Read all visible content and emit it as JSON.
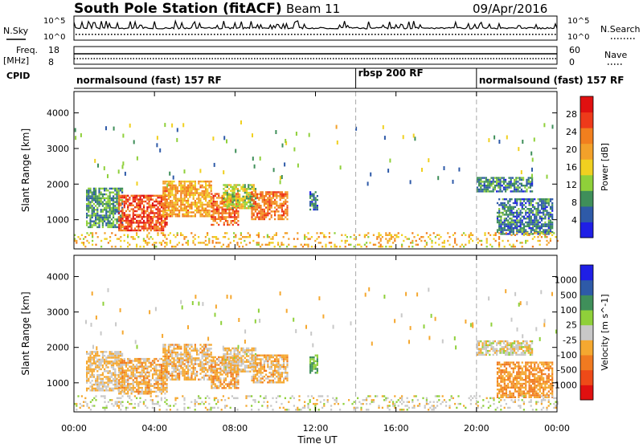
{
  "header": {
    "station": "South Pole Station (fitACF)",
    "beam": "Beam 11",
    "date": "09/Apr/2016"
  },
  "strips": {
    "nsky_label": "N.Sky",
    "nsearch_label": "N.Search",
    "log_ticks": [
      "10^5",
      "10^0"
    ],
    "freq_label": "Freq.",
    "freq_unit": "[MHz]",
    "freq_ticks": [
      "18",
      "8"
    ],
    "nave_label": "Nave",
    "nave_ticks": [
      "60",
      "0"
    ],
    "cpid_label": "CPID",
    "cpid_segments": [
      {
        "label": "normalsound (fast) 157 RF",
        "start_h": 0,
        "end_h": 14
      },
      {
        "label": "rbsp 200 RF",
        "start_h": 14,
        "end_h": 20
      },
      {
        "label": "normalsound (fast) 157 RF",
        "start_h": 20,
        "end_h": 24
      }
    ]
  },
  "xaxis": {
    "label": "Time UT",
    "ticks": [
      "00:00",
      "04:00",
      "08:00",
      "12:00",
      "16:00",
      "20:00",
      "00:00"
    ]
  },
  "colors": {
    "power": [
      "#1f1fe6",
      "#2e5aa8",
      "#3f8f5a",
      "#8fd03a",
      "#f0d020",
      "#f3a12a",
      "#f27f1e",
      "#ee3a1a",
      "#e01010"
    ],
    "velocity": [
      "#e01010",
      "#ee4a18",
      "#f07a20",
      "#f5a830",
      "#c8c8c8",
      "#8fd03a",
      "#3f8f5a",
      "#2e5aa8",
      "#1f1fe6"
    ]
  },
  "chart_data": [
    {
      "type": "heatmap",
      "panel": "power",
      "ylabel": "Slant Range [km]",
      "colorbar_label": "Power [dB]",
      "colorbar_ticks": [
        "28",
        "24",
        "20",
        "16",
        "12",
        "8",
        "4"
      ],
      "x": [
        0,
        24
      ],
      "x_ticks": [
        "00:00",
        "04:00",
        "08:00",
        "12:00",
        "16:00",
        "20:00",
        "00:00"
      ],
      "y_ticks": [
        "4000",
        "3000",
        "2000",
        "1000"
      ],
      "ylim": [
        180,
        4600
      ],
      "clim": [
        0,
        32
      ],
      "vertical_markers_h": [
        14,
        20
      ],
      "patches": [
        {
          "t0": 0.6,
          "t1": 2.4,
          "r0": 800,
          "r1": 1900,
          "value": 9
        },
        {
          "t0": 2.2,
          "t1": 4.6,
          "r0": 700,
          "r1": 1700,
          "value": 26
        },
        {
          "t0": 4.4,
          "t1": 6.8,
          "r0": 1100,
          "r1": 2100,
          "value": 20
        },
        {
          "t0": 6.8,
          "t1": 8.2,
          "r0": 850,
          "r1": 1750,
          "value": 24
        },
        {
          "t0": 7.4,
          "t1": 9.0,
          "r0": 1300,
          "r1": 2000,
          "value": 14
        },
        {
          "t0": 8.8,
          "t1": 10.6,
          "r0": 1000,
          "r1": 1800,
          "value": 23
        },
        {
          "t0": 11.7,
          "t1": 12.1,
          "r0": 1300,
          "r1": 1800,
          "value": 7
        },
        {
          "t0": 20.0,
          "t1": 22.8,
          "r0": 1800,
          "r1": 2200,
          "value": 8
        },
        {
          "t0": 21.0,
          "t1": 23.8,
          "r0": 600,
          "r1": 1600,
          "value": 7
        },
        {
          "t0": 0.0,
          "t1": 24.0,
          "r0": 250,
          "r1": 650,
          "value": 18
        }
      ]
    },
    {
      "type": "heatmap",
      "panel": "velocity",
      "ylabel": "Slant Range [km]",
      "colorbar_label": "Velocity [m s^-1]",
      "colorbar_ticks": [
        "1000",
        "500",
        "100",
        "25",
        "-25",
        "-100",
        "-500",
        "-1000"
      ],
      "x": [
        0,
        24
      ],
      "x_ticks": [
        "00:00",
        "04:00",
        "08:00",
        "12:00",
        "16:00",
        "20:00",
        "00:00"
      ],
      "y_ticks": [
        "4000",
        "3000",
        "2000",
        "1000"
      ],
      "ylim": [
        180,
        4600
      ],
      "clim": [
        -1200,
        1200
      ],
      "vertical_markers_h": [
        14,
        20
      ],
      "patches": [
        {
          "t0": 0.6,
          "t1": 2.4,
          "r0": 800,
          "r1": 1900,
          "value": -150
        },
        {
          "t0": 2.2,
          "t1": 4.6,
          "r0": 700,
          "r1": 1700,
          "value": -250
        },
        {
          "t0": 4.4,
          "t1": 6.8,
          "r0": 1100,
          "r1": 2100,
          "value": -200
        },
        {
          "t0": 6.8,
          "t1": 8.2,
          "r0": 850,
          "r1": 1750,
          "value": -300
        },
        {
          "t0": 7.4,
          "t1": 9.0,
          "r0": 1300,
          "r1": 2000,
          "value": -100
        },
        {
          "t0": 8.8,
          "t1": 10.6,
          "r0": 1000,
          "r1": 1800,
          "value": -250
        },
        {
          "t0": 11.7,
          "t1": 12.1,
          "r0": 1300,
          "r1": 1800,
          "value": 400
        },
        {
          "t0": 20.0,
          "t1": 22.8,
          "r0": 1800,
          "r1": 2200,
          "value": -50
        },
        {
          "t0": 21.0,
          "t1": 23.8,
          "r0": 600,
          "r1": 1600,
          "value": -400
        },
        {
          "t0": 0.0,
          "t1": 24.0,
          "r0": 250,
          "r1": 650,
          "value": 0
        }
      ]
    }
  ]
}
